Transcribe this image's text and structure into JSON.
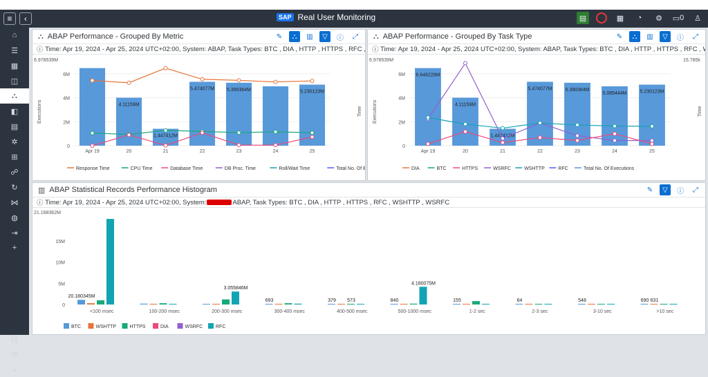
{
  "app": {
    "title": "Real User Monitoring",
    "logo": "SAP",
    "user_count": "0"
  },
  "sidebar": {
    "items": [
      "home-icon",
      "list-icon",
      "grid-icon",
      "monitor-icon",
      "abap-icon",
      "layout-icon",
      "table-icon",
      "settings-icon",
      "apps-icon",
      "users-icon",
      "refresh-icon",
      "share-icon",
      "globe-icon",
      "export-icon",
      "add-icon",
      "link-icon",
      "mail-icon",
      "download-icon"
    ]
  },
  "panel1": {
    "title": "ABAP Performance - Grouped By Metric",
    "info": "Time: Apr 19, 2024 - Apr 25, 2024 UTC+02:00, System:",
    "info_after": "ABAP, Task Types: BTC , DIA , HTTP , HTTPS , RFC , WSHTTP ...",
    "legend": [
      "Response Time",
      "CPU Time",
      "Database Time",
      "DB Proc. Time",
      "Roll/Wait Time",
      "Total No. Of E"
    ],
    "left_axis": "Executions",
    "right_axis": "Time",
    "top_value": "6.978539M"
  },
  "panel2": {
    "title": "ABAP Performance - Grouped By Task Type",
    "info": "Time: Apr 19, 2024 - Apr 25, 2024 UTC+02:00, System:",
    "info_after": "ABAP, Task Types: BTC , DIA , HTTP , HTTPS , RFC , WSHTTP ...",
    "legend": [
      "DIA",
      "BTC",
      "HTTPS",
      "WSRFC",
      "WSHTTP",
      "RFC",
      "Total No. Of Executions"
    ],
    "left_axis": "Executions",
    "right_axis": "Time",
    "top_value": "6.978539M",
    "top_right": "15.785k"
  },
  "panel3": {
    "title": "ABAP Statistical Records Performance Histogram",
    "info": "Time: Apr 19, 2024 - Apr 25, 2024 UTC+02:00, System:",
    "info_after": "ABAP, Task Types: BTC , DIA , HTTP , HTTPS , RFC , WSHTTP , WSRFC",
    "legend": [
      "BTC",
      "WSHTTP",
      "HTTPS",
      "DIA",
      "WSRFC",
      "RFC"
    ],
    "top_value": "21.168362M"
  },
  "colors": {
    "bar": "#5899da",
    "resp": "#e8743b",
    "cpu": "#19a979",
    "db": "#ed4a7b",
    "dbproc": "#945ecf",
    "roll": "#13a4b4",
    "total": "#525df4"
  },
  "chart_data": [
    {
      "type": "bar",
      "title": "ABAP Performance - Grouped By Metric",
      "categories": [
        "Apr 19",
        "20",
        "21",
        "22",
        "23",
        "24",
        "25"
      ],
      "series": [
        {
          "name": "Total No. Of E",
          "values": [
            6646228,
            4111590,
            1447412,
            5474077,
            5390364,
            5085444,
            5230123
          ],
          "labels": [
            "",
            "4.11159M",
            "1.447412M",
            "5.474077M",
            "5.390364M",
            "",
            "5.230123M"
          ]
        },
        {
          "name": "Response Time",
          "values": [
            464,
            448,
            552,
            473,
            465,
            454,
            461
          ]
        },
        {
          "name": "CPU Time",
          "values": [
            90,
            80,
            109,
            102,
            93,
            99,
            92
          ]
        },
        {
          "name": "Database Time",
          "values": [
            0,
            77,
            2,
            92,
            4,
            4,
            62
          ]
        }
      ],
      "ylim": [
        0,
        6978539
      ],
      "y2lim": [
        0,
        580
      ]
    },
    {
      "type": "bar",
      "title": "ABAP Performance - Grouped By Task Type",
      "categories": [
        "Apr 19",
        "20",
        "21",
        "22",
        "23",
        "24",
        "25"
      ],
      "series": [
        {
          "name": "Total No. Of Executions",
          "values": [
            6646228,
            4111590,
            1447412,
            5474077,
            5390364,
            5085444,
            5230123
          ],
          "labels": [
            "6.646228M",
            "4.11159M",
            "1.447412M",
            "5.474077M",
            "5.390364M",
            "5.085444M",
            "5.230123M"
          ]
        },
        {
          "name": "WSRFC",
          "values": [
            5.176,
            15.983,
            1.4,
            4.392,
            1.948,
            1.0,
            1.0
          ]
        },
        {
          "name": "WSHTTP",
          "values": [
            5.463,
            4.173,
            3.402,
            4.392,
            4.022,
            3.8,
            3.764
          ]
        },
        {
          "name": "BTC",
          "values": [
            0.35,
            2.721,
            0.6,
            1.573,
            1.0,
            2.306,
            0.35
          ]
        }
      ],
      "ylim": [
        0,
        6978539
      ],
      "y2lim": [
        0,
        15.785
      ]
    },
    {
      "type": "bar",
      "title": "ABAP Statistical Records Performance Histogram",
      "categories": [
        "<100 msec",
        "100-200 msec",
        "200-300 msec",
        "300-400 msec",
        "400-500 msec",
        "500-1000 msec",
        "1-2 sec",
        "2-3 sec",
        "3-10 sec",
        ">10 sec"
      ],
      "series": [
        {
          "name": "BTC",
          "values": [
            1100000,
            200000,
            100000,
            693,
            379,
            840,
            155,
            64,
            548,
            690
          ]
        },
        {
          "name": "WSHTTP",
          "values": [
            300000,
            150000,
            120000,
            80000,
            60000,
            100000,
            40000,
            30000,
            20000,
            631
          ]
        },
        {
          "name": "HTTPS",
          "values": [
            1000000,
            300000,
            1200000,
            300000,
            573,
            200000,
            800000,
            100000,
            50000,
            40000
          ]
        },
        {
          "name": "RFC",
          "values": [
            20180345,
            0,
            3055846,
            200000,
            0,
            4180075,
            0,
            0,
            0,
            0
          ]
        }
      ],
      "ylim": [
        0,
        21168362
      ]
    }
  ]
}
